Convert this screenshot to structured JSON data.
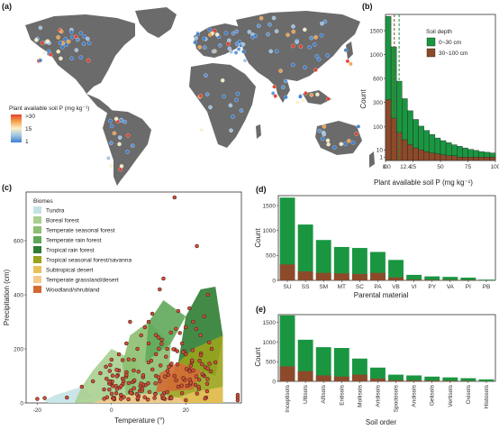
{
  "panels": {
    "a": {
      "label": "(a)",
      "legend_title": "Plant available soil P (mg kg⁻¹)",
      "legend_ticks": [
        ">30",
        "15",
        "1"
      ],
      "colors": {
        "low": "#3f7fcf",
        "mid": "#fbf0c9",
        "high": "#e43f2c",
        "land": "#6b6b6b",
        "ocean": "#ffffff"
      }
    },
    "b": {
      "label": "(b)",
      "xlabel": "Plant available soil P (mg kg⁻¹)",
      "ylabel": "Count",
      "legend_title": "Soil depth",
      "vline_labels": [
        "8.0",
        "12.4"
      ],
      "vline_values": [
        8.0,
        12.4
      ]
    },
    "c": {
      "label": "(c)",
      "xlabel": "Temperature (°)",
      "ylabel": "Precipitation (cm)",
      "legend_title": "Biomes",
      "biomes": [
        {
          "name": "Tundra",
          "color": "#c5e3e6"
        },
        {
          "name": "Boreal forest",
          "color": "#a8cf8f"
        },
        {
          "name": "Temperate seasonal forest",
          "color": "#8cbf6f"
        },
        {
          "name": "Temperate rain forest",
          "color": "#5fa85a"
        },
        {
          "name": "Tropical rain forest",
          "color": "#2f7d33"
        },
        {
          "name": "Tropical seasonal forest/savanna",
          "color": "#9aa31c"
        },
        {
          "name": "Subtropical desert",
          "color": "#e8c15a"
        },
        {
          "name": "Temperate grassland/desert",
          "color": "#f4c98c"
        },
        {
          "name": "Woodland/shrubland",
          "color": "#d46a33"
        }
      ]
    },
    "d": {
      "label": "(d)",
      "xlabel": "Parental material",
      "ylabel": "Count"
    },
    "e": {
      "label": "(e)",
      "xlabel": "Soil order",
      "ylabel": "Count"
    }
  },
  "chart_data": [
    {
      "type": "bar",
      "title": "",
      "xlabel": "Plant available soil P (mg kg⁻¹)",
      "ylabel": "Count",
      "xlim": [
        0,
        100
      ],
      "x_ticks": [
        "0",
        "25",
        "50",
        "75",
        "100"
      ],
      "y_ticks": [
        "1",
        "10",
        "100",
        "300",
        "600",
        "1000",
        "1500"
      ],
      "y_scale": "sqrt",
      "bin_width": 5,
      "bin_starts": [
        0,
        5,
        10,
        15,
        20,
        25,
        30,
        35,
        40,
        45,
        50,
        55,
        60,
        65,
        70,
        75,
        80,
        85,
        90,
        95
      ],
      "series": [
        {
          "name": "0~30 cm",
          "color": "#1a9641",
          "values": [
            1850,
            1150,
            560,
            340,
            220,
            150,
            105,
            80,
            60,
            45,
            35,
            28,
            22,
            18,
            14,
            11,
            9,
            7,
            6,
            5
          ]
        },
        {
          "name": "30~100 cm",
          "color": "#8c4a2a",
          "values": [
            330,
            160,
            70,
            38,
            22,
            14,
            10,
            7,
            5,
            4,
            3,
            2,
            2,
            1,
            1,
            1,
            1,
            1,
            1,
            1
          ]
        }
      ],
      "legend_position": "top-right"
    },
    {
      "type": "bar",
      "title": "",
      "xlabel": "Parental material",
      "ylabel": "Count",
      "ylim": [
        0,
        1700
      ],
      "y_ticks": [
        "0",
        "500",
        "1000",
        "1500"
      ],
      "categories": [
        "SU",
        "SS",
        "SM",
        "MT",
        "SC",
        "PA",
        "VB",
        "VI",
        "PY",
        "VA",
        "PI",
        "PB"
      ],
      "series": [
        {
          "name": "0~30 cm",
          "color": "#1a9641",
          "values": [
            1660,
            1120,
            810,
            670,
            650,
            570,
            410,
            110,
            80,
            70,
            55,
            15
          ]
        },
        {
          "name": "30~100 cm",
          "color": "#8c4a2a",
          "values": [
            320,
            180,
            150,
            140,
            130,
            150,
            60,
            15,
            12,
            10,
            8,
            2
          ]
        }
      ]
    },
    {
      "type": "bar",
      "title": "",
      "xlabel": "Soil order",
      "ylabel": "Count",
      "ylim": [
        0,
        1700
      ],
      "y_ticks": [
        "0",
        "500",
        "1000",
        "1500"
      ],
      "categories": [
        "Inceptisols",
        "Ultisols",
        "Alfisols",
        "Entisols",
        "Mollisols",
        "Aridisols",
        "Spodosols",
        "Andisols",
        "Gelisols",
        "Vertisols",
        "Oxisols",
        "Histosols"
      ],
      "series": [
        {
          "name": "0~30 cm",
          "color": "#1a9641",
          "values": [
            1680,
            1060,
            870,
            850,
            580,
            350,
            170,
            150,
            120,
            100,
            80,
            50
          ]
        },
        {
          "name": "30~100 cm",
          "color": "#8c4a2a",
          "values": [
            380,
            260,
            150,
            120,
            170,
            70,
            30,
            25,
            20,
            15,
            12,
            5
          ]
        }
      ]
    },
    {
      "type": "scatter",
      "title": "",
      "xlabel": "Temperature (°)",
      "ylabel": "Precipitation (cm)",
      "xlim": [
        -23,
        35
      ],
      "ylim": [
        0,
        780
      ],
      "x_ticks": [
        "-20",
        "0",
        "20"
      ],
      "y_ticks": [
        "0",
        "200",
        "400",
        "600"
      ],
      "points_approx": [
        [
          -20,
          15
        ],
        [
          -18,
          18
        ],
        [
          -12,
          20
        ],
        [
          -8,
          60
        ],
        [
          -5,
          80
        ],
        [
          -3,
          110
        ],
        [
          0,
          160
        ],
        [
          2,
          180
        ],
        [
          4,
          220
        ],
        [
          5,
          300
        ],
        [
          6,
          120
        ],
        [
          7,
          200
        ],
        [
          8,
          250
        ],
        [
          9,
          280
        ],
        [
          10,
          300
        ],
        [
          10,
          150
        ],
        [
          11,
          330
        ],
        [
          12,
          180
        ],
        [
          13,
          420
        ],
        [
          13,
          80
        ],
        [
          14,
          460
        ],
        [
          15,
          200
        ],
        [
          16,
          260
        ],
        [
          17,
          760
        ],
        [
          18,
          340
        ],
        [
          19,
          220
        ],
        [
          20,
          280
        ],
        [
          21,
          350
        ],
        [
          22,
          300
        ],
        [
          23,
          580
        ],
        [
          24,
          250
        ],
        [
          25,
          320
        ],
        [
          26,
          400
        ],
        [
          27,
          200
        ],
        [
          28,
          150
        ],
        [
          22,
          120
        ],
        [
          18,
          60
        ],
        [
          15,
          40
        ],
        [
          12,
          100
        ],
        [
          8,
          60
        ],
        [
          5,
          40
        ],
        [
          3,
          90
        ],
        [
          0,
          70
        ],
        [
          -2,
          50
        ],
        [
          25,
          100
        ],
        [
          20,
          180
        ],
        [
          16,
          140
        ],
        [
          10,
          220
        ],
        [
          6,
          160
        ],
        [
          2,
          120
        ],
        [
          34,
          30
        ],
        [
          34,
          20
        ],
        [
          34,
          10
        ]
      ]
    }
  ]
}
